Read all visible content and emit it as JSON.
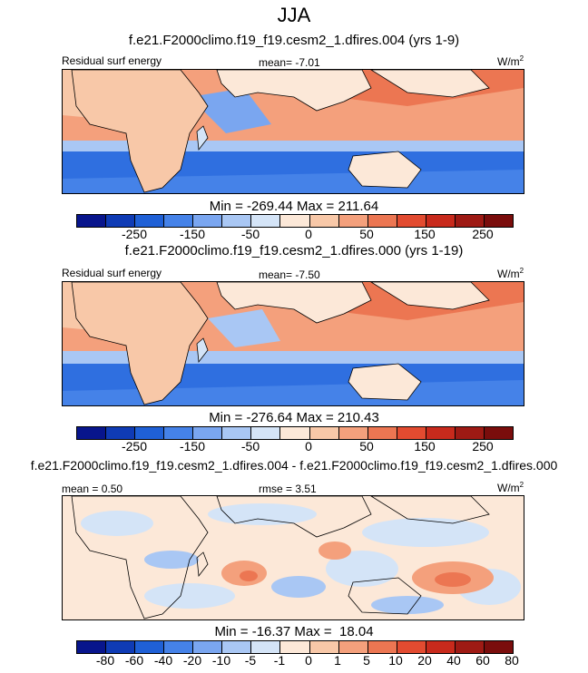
{
  "page_title": "JJA",
  "colors": {
    "levels_fill": [
      "#08158c",
      "#0f3bb5",
      "#1f60d6",
      "#4582e8",
      "#7aa6f0",
      "#a9c7f4",
      "#d4e4f7",
      "#fce8d8",
      "#f8c8a8",
      "#f4a07c",
      "#ec7652",
      "#e24b30",
      "#c82a1c",
      "#9e1a14",
      "#7a0d0c"
    ],
    "ocean_blue": "#2f6fe0",
    "ocean_light": "#d6e6f7",
    "ocean_warm": "#f09066"
  },
  "chart_data": [
    {
      "type": "heatmap",
      "title": "f.e21.F2000climo.f19_f19.cesm2_1.dfires.004 (yrs 1-9)",
      "variable": "Residual surf energy",
      "mean_label": "mean=",
      "mean": "-7.01",
      "units": "W/m",
      "units_sup": "2",
      "minmax": "Min = -269.44 Max = 211.64",
      "min": -269.44,
      "max": 211.64,
      "colorbar_ticks": [
        "-250",
        "-150",
        "-50",
        "0",
        "50",
        "150",
        "250"
      ]
    },
    {
      "type": "heatmap",
      "title": "f.e21.F2000climo.f19_f19.cesm2_1.dfires.000 (yrs 1-19)",
      "variable": "Residual surf energy",
      "mean_label": "mean=",
      "mean": "-7.50",
      "units": "W/m",
      "units_sup": "2",
      "minmax": "Min = -276.64 Max = 210.43",
      "min": -276.64,
      "max": 210.43,
      "colorbar_ticks": [
        "-250",
        "-150",
        "-50",
        "0",
        "50",
        "150",
        "250"
      ]
    },
    {
      "type": "heatmap",
      "title": "f.e21.F2000climo.f19_f19.cesm2_1.dfires.004 - f.e21.F2000climo.f19_f19.cesm2_1.dfires.000",
      "mean_label": "mean =",
      "mean": "0.50",
      "rmse_label": "rmse =",
      "rmse": "3.51",
      "units": "W/m",
      "units_sup": "2",
      "minmax": "Min = -16.37 Max =  18.04",
      "min": -16.37,
      "max": 18.04,
      "colorbar_ticks": [
        "-80",
        "-60",
        "-40",
        "-20",
        "-10",
        "-5",
        "-1",
        "0",
        "1",
        "5",
        "10",
        "20",
        "40",
        "60",
        "80"
      ]
    }
  ]
}
